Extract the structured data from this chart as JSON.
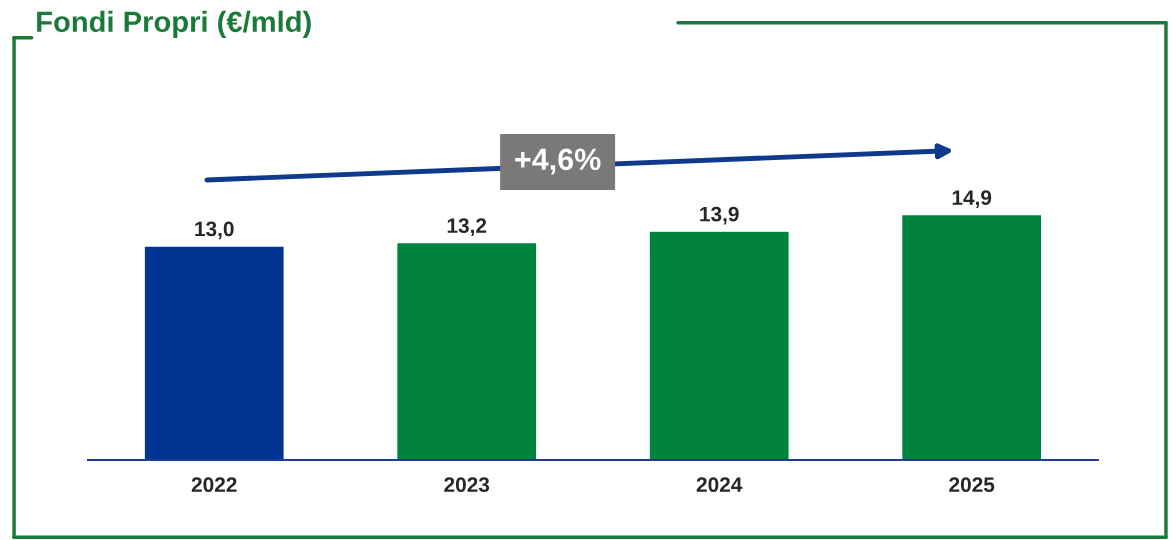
{
  "chart_data": {
    "type": "bar",
    "title": "Fondi Propri (€/mld)",
    "categories": [
      "2022",
      "2023",
      "2024",
      "2025"
    ],
    "values": [
      13.0,
      13.2,
      13.9,
      14.9
    ],
    "colors": [
      "#003591",
      "#00843d",
      "#00843d",
      "#00843d"
    ],
    "value_labels": [
      "13,0",
      "13,2",
      "13,9",
      "14,9"
    ],
    "ylim": [
      0,
      20
    ],
    "tick_labels": "x",
    "grid": false,
    "legend": false,
    "annotations": [
      "+4,6%"
    ]
  }
}
